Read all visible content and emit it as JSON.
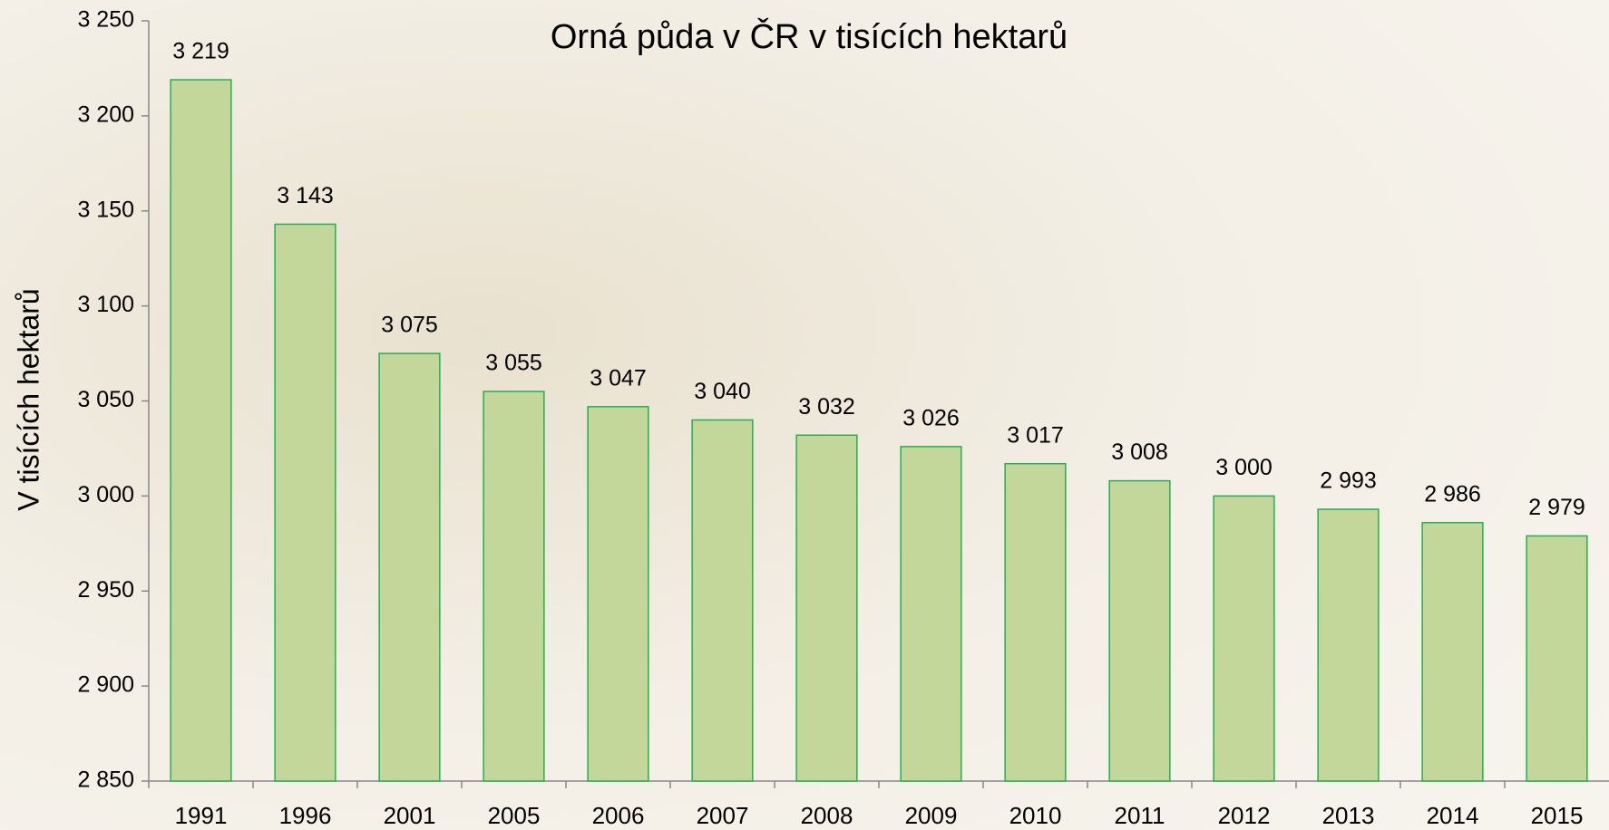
{
  "chart_data": {
    "type": "bar",
    "title": "Orná půda v ČR v tisících hektarů",
    "y_label": "V tisících hektarů",
    "categories": [
      "1991",
      "1996",
      "2001",
      "2005",
      "2006",
      "2007",
      "2008",
      "2009",
      "2010",
      "2011",
      "2012",
      "2013",
      "2014",
      "2015"
    ],
    "values": [
      3219,
      3143,
      3075,
      3055,
      3047,
      3040,
      3032,
      3026,
      3017,
      3008,
      3000,
      2993,
      2986,
      2979
    ],
    "value_labels": [
      "3 219",
      "3 143",
      "3 075",
      "3 055",
      "3 047",
      "3 040",
      "3 032",
      "3 026",
      "3 017",
      "3 008",
      "3 000",
      "2 993",
      "2 986",
      "2 979"
    ],
    "color": "#c4d79b",
    "edge_color": "#22b14c",
    "ylim": [
      2850,
      3250
    ],
    "yticks": [
      {
        "value": 2850,
        "label": "2 850"
      },
      {
        "value": 2900,
        "label": "2 900"
      },
      {
        "value": 2950,
        "label": "2 950"
      },
      {
        "value": 3000,
        "label": "3 000"
      },
      {
        "value": 3050,
        "label": "3 050"
      },
      {
        "value": 3100,
        "label": "3 100"
      },
      {
        "value": 3150,
        "label": "3 150"
      },
      {
        "value": 3200,
        "label": "3 200"
      },
      {
        "value": 3250,
        "label": "3 250"
      }
    ],
    "grid": false
  }
}
